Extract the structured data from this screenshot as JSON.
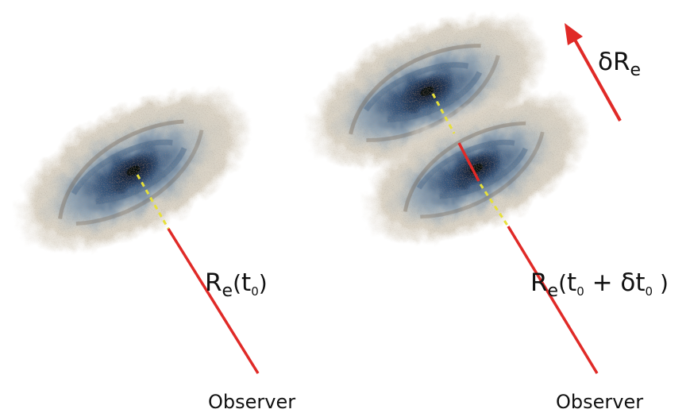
{
  "colors": {
    "vector_line": "#e02a27",
    "sightline_inside": "#e6e03a",
    "galaxy_core": "#1c3250",
    "galaxy_arms": "#5a7a9a",
    "galaxy_halo": "#d9d2c4"
  },
  "labels": {
    "left_distance": {
      "symbol": "R",
      "subscript": "e",
      "arg_open": "(",
      "arg_var": "t",
      "arg_sub": "0",
      "arg_close": ")"
    },
    "right_distance": {
      "symbol": "R",
      "subscript": "e",
      "arg_open": "(",
      "t1": "t",
      "t1_sub": "0",
      "plus": " + ",
      "delta": "δ",
      "t2": "t",
      "t2_sub": "0",
      "arg_close": " )"
    },
    "delta_arrow": {
      "delta": "δ",
      "symbol": "R",
      "subscript": "e"
    },
    "observer_left": "Observer",
    "observer_right": "Observer"
  },
  "icons": [
    "galaxy-image",
    "arrow-icon"
  ]
}
